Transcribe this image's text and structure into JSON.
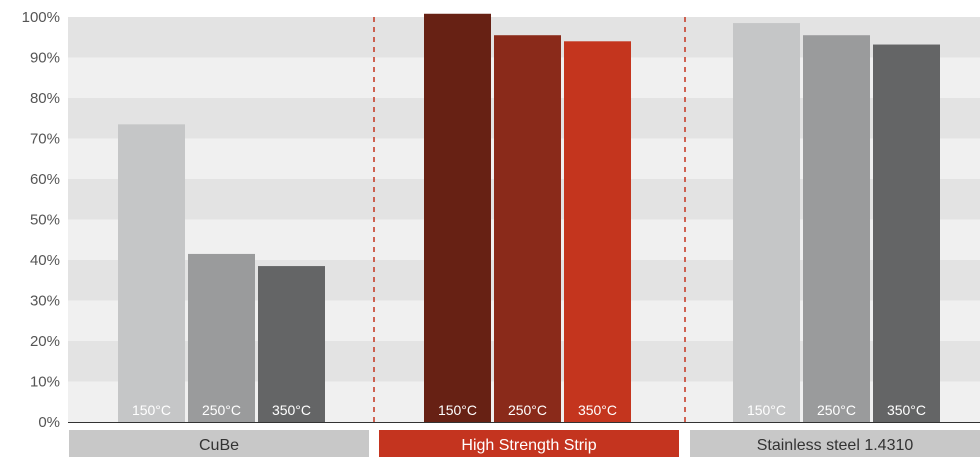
{
  "chart_data": {
    "type": "bar",
    "ylim": [
      0,
      100
    ],
    "y_ticks": [
      "0%",
      "10%",
      "20%",
      "30%",
      "40%",
      "50%",
      "60%",
      "70%",
      "80%",
      "90%",
      "100%"
    ],
    "grid": true,
    "groups": [
      {
        "name": "CuBe",
        "label_bg": "#c8c8c8",
        "label_color": "#333333",
        "bars": [
          {
            "label": "150°C",
            "value": 73.5,
            "color": "#c5c6c7"
          },
          {
            "label": "250°C",
            "value": 41.5,
            "color": "#9a9b9c"
          },
          {
            "label": "350°C",
            "value": 38.5,
            "color": "#646566"
          }
        ]
      },
      {
        "name": "High Strength Strip",
        "label_bg": "#c4341f",
        "label_color": "#ffffff",
        "bars": [
          {
            "label": "150°C",
            "value": 100.8,
            "color": "#672114"
          },
          {
            "label": "250°C",
            "value": 95.5,
            "color": "#8a2a1a"
          },
          {
            "label": "350°C",
            "value": 94.0,
            "color": "#c4351e"
          }
        ]
      },
      {
        "name": "Stainless steel 1.4310",
        "label_bg": "#c8c8c8",
        "label_color": "#333333",
        "bars": [
          {
            "label": "150°C",
            "value": 98.5,
            "color": "#c5c6c7"
          },
          {
            "label": "250°C",
            "value": 95.5,
            "color": "#9a9b9c"
          },
          {
            "label": "350°C",
            "value": 93.2,
            "color": "#646566"
          }
        ]
      }
    ],
    "colors": {
      "band_light": "#f0f0f0",
      "band_dark": "#e3e3e3",
      "separator": "#c4341f",
      "axis": "#333333"
    }
  }
}
